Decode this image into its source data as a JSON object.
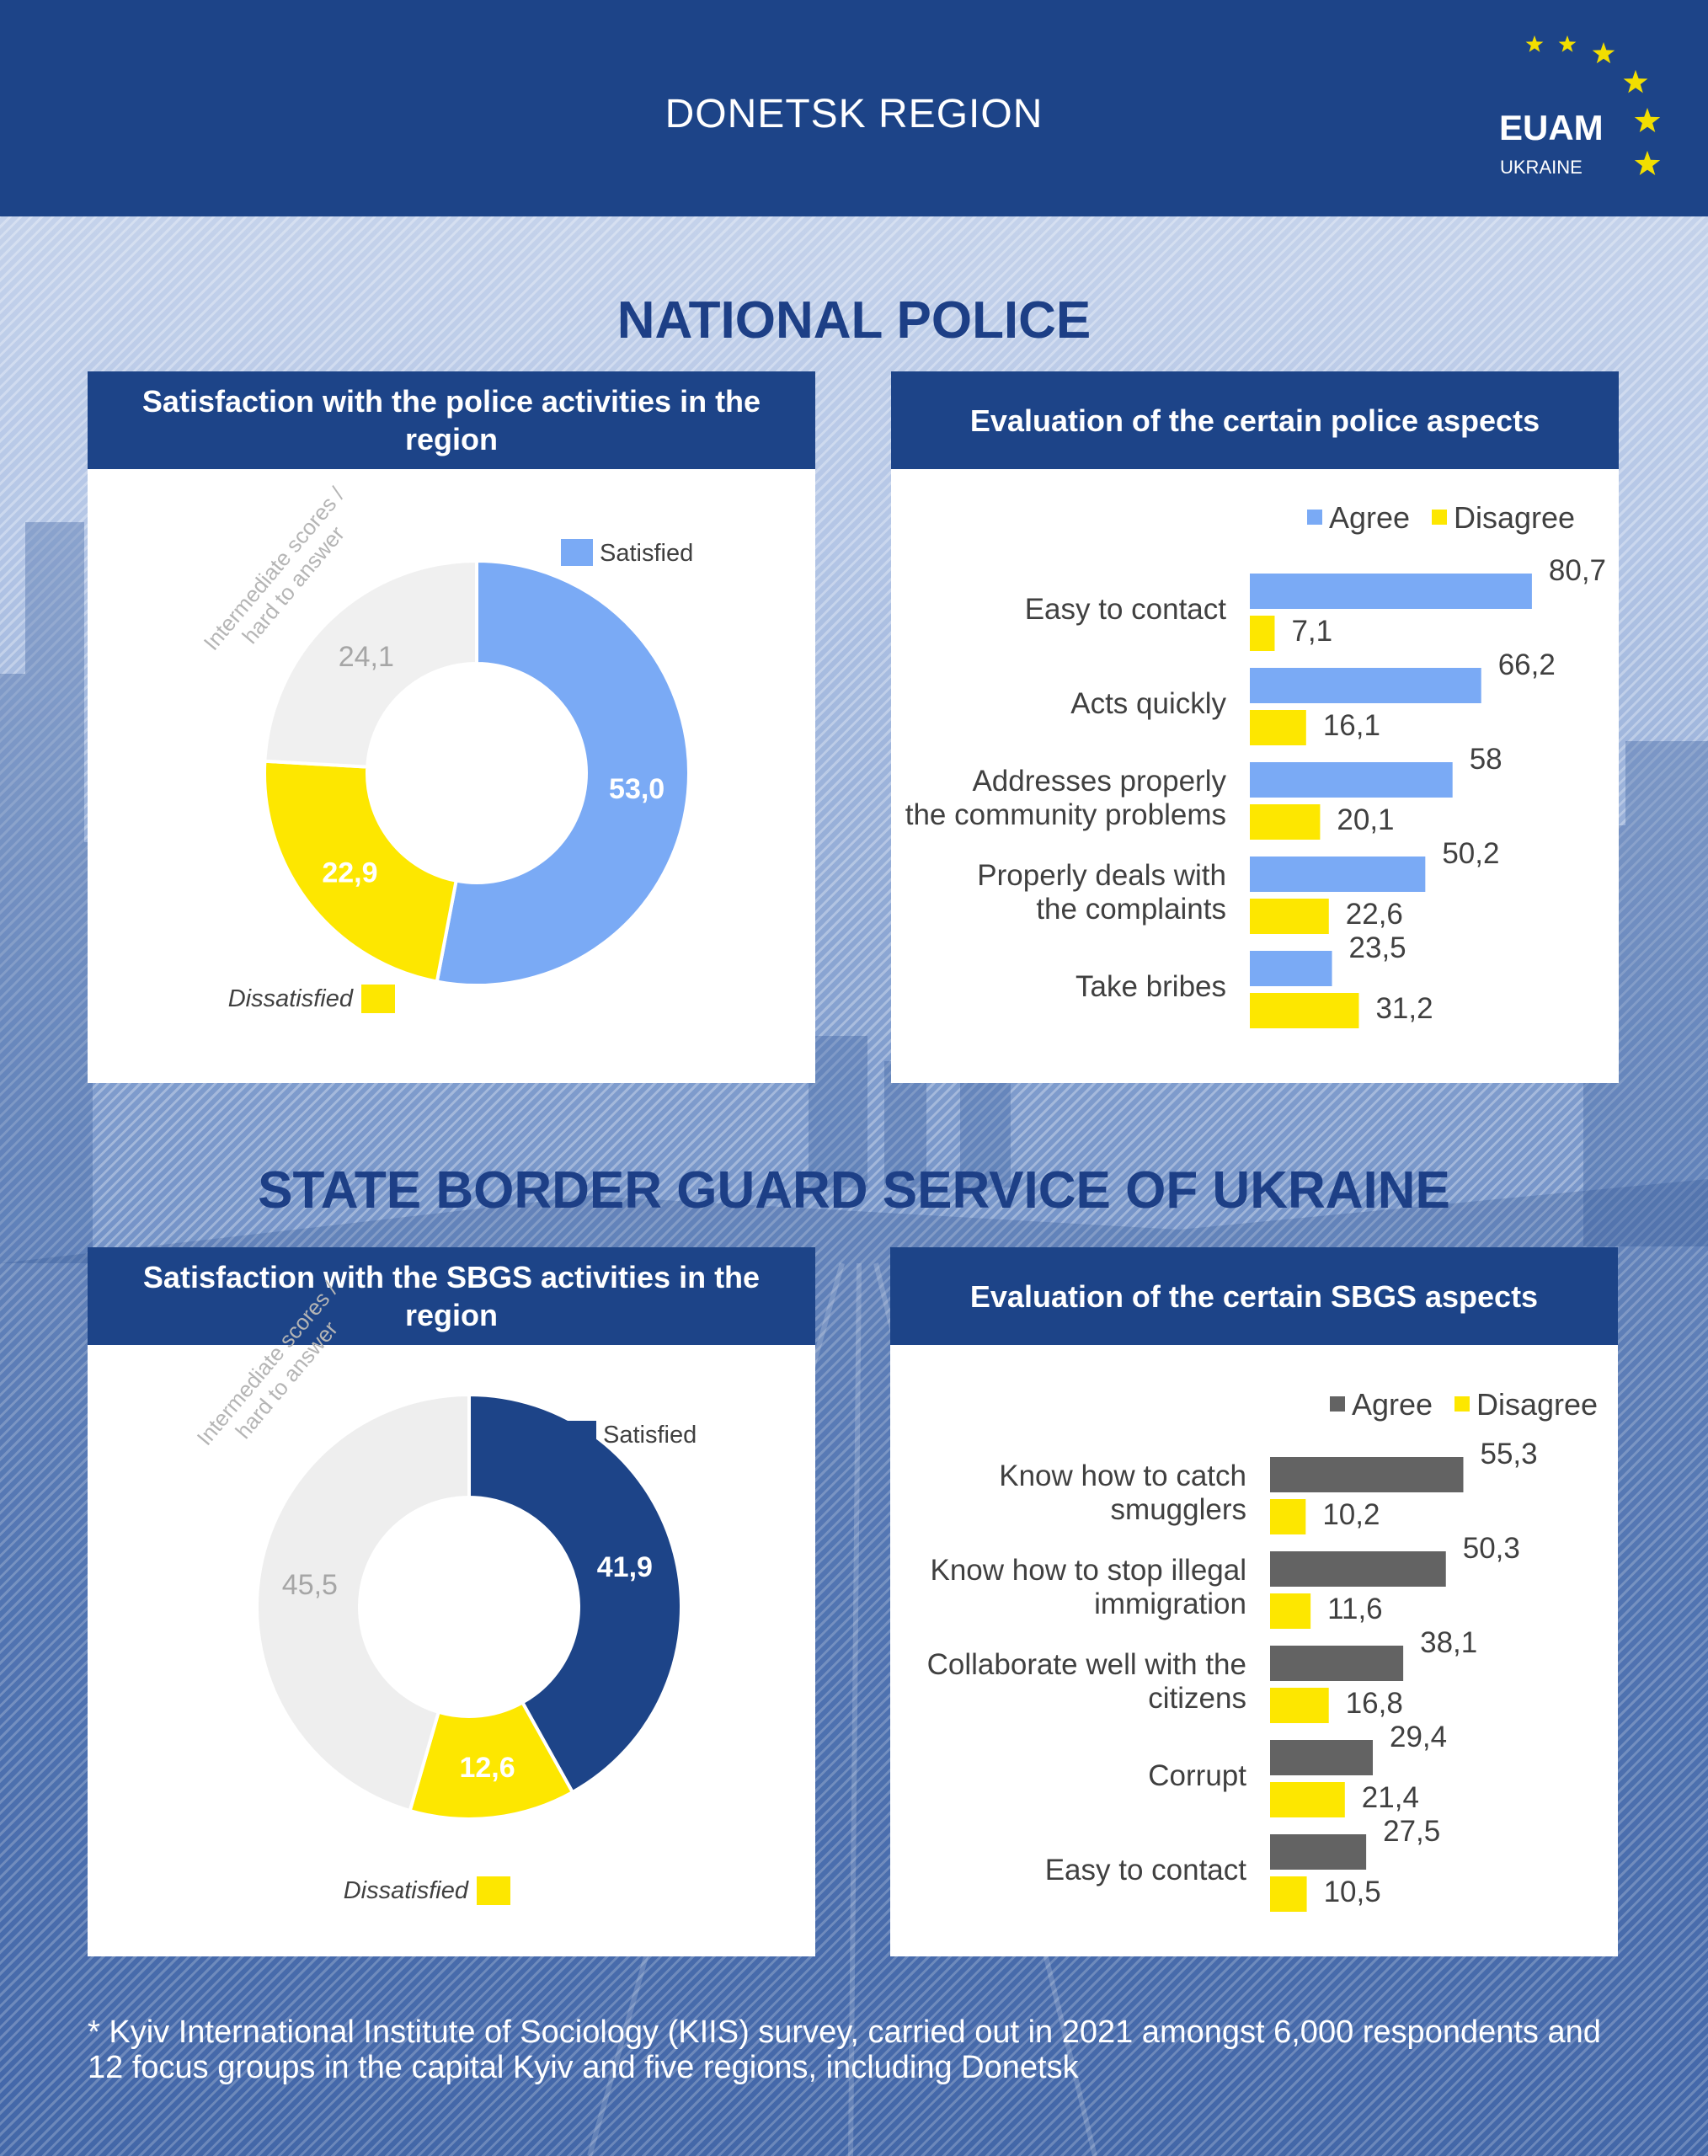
{
  "header": {
    "region": "DONETSK REGION",
    "logo_text": "EUAM",
    "logo_subtext": "UKRAINE"
  },
  "sections": {
    "police_title": "NATIONAL POLICE",
    "sbgs_title": "STATE BORDER GUARD SERVICE OF UKRAINE"
  },
  "panels": {
    "police_donut_title": "Satisfaction with the police activities in the region",
    "police_bar_title": "Evaluation of the certain police aspects",
    "sbgs_donut_title": "Satisfaction with the SBGS activities in the region",
    "sbgs_bar_title": "Evaluation of the certain SBGS aspects"
  },
  "chart_data": [
    {
      "id": "police_donut",
      "type": "pie",
      "title": "Satisfaction with the police activities in the region",
      "slices": [
        {
          "label": "Satisfied",
          "value": 53.0,
          "display": "53,0",
          "color": "#7aaaf5"
        },
        {
          "label": "Dissatisfied",
          "value": 22.9,
          "display": "22,9",
          "color": "#fde700"
        },
        {
          "label": "Intermediate scores / hard to answer",
          "value": 24.1,
          "display": "24,1",
          "color": "#f0f0f0"
        }
      ],
      "legend": {
        "satisfied": "Satisfied",
        "dissatisfied": "Dissatisfied",
        "intermediate_line1": "Intermediate scores /",
        "intermediate_line2": "hard to answer"
      }
    },
    {
      "id": "police_bars",
      "type": "bar",
      "orientation": "horizontal",
      "title": "Evaluation of the certain police aspects",
      "legend": [
        "Agree",
        "Disagree"
      ],
      "categories": [
        [
          "Easy to contact"
        ],
        [
          "Acts quickly"
        ],
        [
          "Addresses properly",
          "the community problems"
        ],
        [
          "Properly deals with",
          "the complaints"
        ],
        [
          "Take bribes"
        ]
      ],
      "series": [
        {
          "name": "Agree",
          "color": "#7aaaf5",
          "values": [
            80.7,
            66.2,
            58,
            50.2,
            23.5
          ],
          "labels": [
            "80,7",
            "66,2",
            "58",
            "50,2",
            "23,5"
          ]
        },
        {
          "name": "Disagree",
          "color": "#fde700",
          "values": [
            7.1,
            16.1,
            20.1,
            22.6,
            31.2
          ],
          "labels": [
            "7,1",
            "16,1",
            "20,1",
            "22,6",
            "31,2"
          ]
        }
      ]
    },
    {
      "id": "sbgs_donut",
      "type": "pie",
      "title": "Satisfaction with the SBGS activities in the region",
      "slices": [
        {
          "label": "Satisfied",
          "value": 41.9,
          "display": "41,9",
          "color": "#1d4488"
        },
        {
          "label": "Dissatisfied",
          "value": 12.6,
          "display": "12,6",
          "color": "#fde700"
        },
        {
          "label": "Intermediate scores / hard to answer",
          "value": 45.5,
          "display": "45,5",
          "color": "#eeeeee"
        }
      ],
      "legend": {
        "satisfied": "Satisfied",
        "dissatisfied": "Dissatisfied",
        "intermediate_line1": "Intermediate scores /",
        "intermediate_line2": "hard to answer"
      }
    },
    {
      "id": "sbgs_bars",
      "type": "bar",
      "orientation": "horizontal",
      "title": "Evaluation of the certain SBGS aspects",
      "legend": [
        "Agree",
        "Disagree"
      ],
      "categories": [
        [
          "Know how to catch",
          "smugglers"
        ],
        [
          "Know how to stop illegal",
          "immigration"
        ],
        [
          "Collaborate well with the",
          "citizens"
        ],
        [
          "Corrupt"
        ],
        [
          "Easy to contact"
        ]
      ],
      "series": [
        {
          "name": "Agree",
          "color": "#636363",
          "values": [
            55.3,
            50.3,
            38.1,
            29.4,
            27.5
          ],
          "labels": [
            "55,3",
            "50,3",
            "38,1",
            "29,4",
            "27,5"
          ]
        },
        {
          "name": "Disagree",
          "color": "#fde700",
          "values": [
            10.2,
            11.6,
            16.8,
            21.4,
            10.5
          ],
          "labels": [
            "10,2",
            "11,6",
            "16,8",
            "21,4",
            "10,5"
          ]
        }
      ]
    }
  ],
  "footnote": "* Kyiv International Institute of Sociology (KIIS) survey, carried out in 2021 amongst 6,000 respondents and 12 focus groups in the capital Kyiv and five regions, including Donetsk"
}
